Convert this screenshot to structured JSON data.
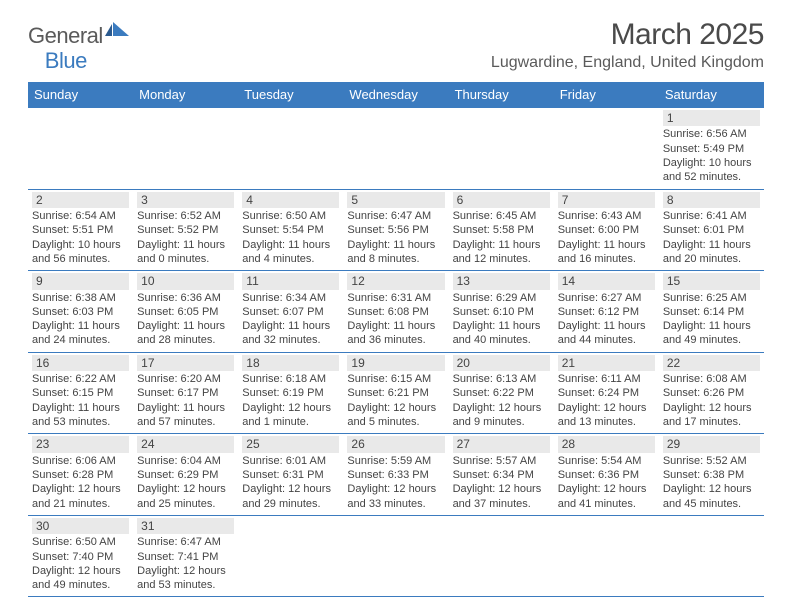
{
  "brand": {
    "part1": "General",
    "part2": "Blue"
  },
  "title": "March 2025",
  "location": "Lugwardine, England, United Kingdom",
  "colors": {
    "header_bg": "#3b7bbf",
    "header_text": "#ffffff",
    "daynum_bg": "#e9e9e9",
    "border": "#3b7bbf",
    "text": "#444444",
    "title_text": "#4a4a4a"
  },
  "weekdays": [
    "Sunday",
    "Monday",
    "Tuesday",
    "Wednesday",
    "Thursday",
    "Friday",
    "Saturday"
  ],
  "weeks": [
    [
      null,
      null,
      null,
      null,
      null,
      null,
      {
        "d": "1",
        "sr": "Sunrise: 6:56 AM",
        "ss": "Sunset: 5:49 PM",
        "dl1": "Daylight: 10 hours",
        "dl2": "and 52 minutes."
      }
    ],
    [
      {
        "d": "2",
        "sr": "Sunrise: 6:54 AM",
        "ss": "Sunset: 5:51 PM",
        "dl1": "Daylight: 10 hours",
        "dl2": "and 56 minutes."
      },
      {
        "d": "3",
        "sr": "Sunrise: 6:52 AM",
        "ss": "Sunset: 5:52 PM",
        "dl1": "Daylight: 11 hours",
        "dl2": "and 0 minutes."
      },
      {
        "d": "4",
        "sr": "Sunrise: 6:50 AM",
        "ss": "Sunset: 5:54 PM",
        "dl1": "Daylight: 11 hours",
        "dl2": "and 4 minutes."
      },
      {
        "d": "5",
        "sr": "Sunrise: 6:47 AM",
        "ss": "Sunset: 5:56 PM",
        "dl1": "Daylight: 11 hours",
        "dl2": "and 8 minutes."
      },
      {
        "d": "6",
        "sr": "Sunrise: 6:45 AM",
        "ss": "Sunset: 5:58 PM",
        "dl1": "Daylight: 11 hours",
        "dl2": "and 12 minutes."
      },
      {
        "d": "7",
        "sr": "Sunrise: 6:43 AM",
        "ss": "Sunset: 6:00 PM",
        "dl1": "Daylight: 11 hours",
        "dl2": "and 16 minutes."
      },
      {
        "d": "8",
        "sr": "Sunrise: 6:41 AM",
        "ss": "Sunset: 6:01 PM",
        "dl1": "Daylight: 11 hours",
        "dl2": "and 20 minutes."
      }
    ],
    [
      {
        "d": "9",
        "sr": "Sunrise: 6:38 AM",
        "ss": "Sunset: 6:03 PM",
        "dl1": "Daylight: 11 hours",
        "dl2": "and 24 minutes."
      },
      {
        "d": "10",
        "sr": "Sunrise: 6:36 AM",
        "ss": "Sunset: 6:05 PM",
        "dl1": "Daylight: 11 hours",
        "dl2": "and 28 minutes."
      },
      {
        "d": "11",
        "sr": "Sunrise: 6:34 AM",
        "ss": "Sunset: 6:07 PM",
        "dl1": "Daylight: 11 hours",
        "dl2": "and 32 minutes."
      },
      {
        "d": "12",
        "sr": "Sunrise: 6:31 AM",
        "ss": "Sunset: 6:08 PM",
        "dl1": "Daylight: 11 hours",
        "dl2": "and 36 minutes."
      },
      {
        "d": "13",
        "sr": "Sunrise: 6:29 AM",
        "ss": "Sunset: 6:10 PM",
        "dl1": "Daylight: 11 hours",
        "dl2": "and 40 minutes."
      },
      {
        "d": "14",
        "sr": "Sunrise: 6:27 AM",
        "ss": "Sunset: 6:12 PM",
        "dl1": "Daylight: 11 hours",
        "dl2": "and 44 minutes."
      },
      {
        "d": "15",
        "sr": "Sunrise: 6:25 AM",
        "ss": "Sunset: 6:14 PM",
        "dl1": "Daylight: 11 hours",
        "dl2": "and 49 minutes."
      }
    ],
    [
      {
        "d": "16",
        "sr": "Sunrise: 6:22 AM",
        "ss": "Sunset: 6:15 PM",
        "dl1": "Daylight: 11 hours",
        "dl2": "and 53 minutes."
      },
      {
        "d": "17",
        "sr": "Sunrise: 6:20 AM",
        "ss": "Sunset: 6:17 PM",
        "dl1": "Daylight: 11 hours",
        "dl2": "and 57 minutes."
      },
      {
        "d": "18",
        "sr": "Sunrise: 6:18 AM",
        "ss": "Sunset: 6:19 PM",
        "dl1": "Daylight: 12 hours",
        "dl2": "and 1 minute."
      },
      {
        "d": "19",
        "sr": "Sunrise: 6:15 AM",
        "ss": "Sunset: 6:21 PM",
        "dl1": "Daylight: 12 hours",
        "dl2": "and 5 minutes."
      },
      {
        "d": "20",
        "sr": "Sunrise: 6:13 AM",
        "ss": "Sunset: 6:22 PM",
        "dl1": "Daylight: 12 hours",
        "dl2": "and 9 minutes."
      },
      {
        "d": "21",
        "sr": "Sunrise: 6:11 AM",
        "ss": "Sunset: 6:24 PM",
        "dl1": "Daylight: 12 hours",
        "dl2": "and 13 minutes."
      },
      {
        "d": "22",
        "sr": "Sunrise: 6:08 AM",
        "ss": "Sunset: 6:26 PM",
        "dl1": "Daylight: 12 hours",
        "dl2": "and 17 minutes."
      }
    ],
    [
      {
        "d": "23",
        "sr": "Sunrise: 6:06 AM",
        "ss": "Sunset: 6:28 PM",
        "dl1": "Daylight: 12 hours",
        "dl2": "and 21 minutes."
      },
      {
        "d": "24",
        "sr": "Sunrise: 6:04 AM",
        "ss": "Sunset: 6:29 PM",
        "dl1": "Daylight: 12 hours",
        "dl2": "and 25 minutes."
      },
      {
        "d": "25",
        "sr": "Sunrise: 6:01 AM",
        "ss": "Sunset: 6:31 PM",
        "dl1": "Daylight: 12 hours",
        "dl2": "and 29 minutes."
      },
      {
        "d": "26",
        "sr": "Sunrise: 5:59 AM",
        "ss": "Sunset: 6:33 PM",
        "dl1": "Daylight: 12 hours",
        "dl2": "and 33 minutes."
      },
      {
        "d": "27",
        "sr": "Sunrise: 5:57 AM",
        "ss": "Sunset: 6:34 PM",
        "dl1": "Daylight: 12 hours",
        "dl2": "and 37 minutes."
      },
      {
        "d": "28",
        "sr": "Sunrise: 5:54 AM",
        "ss": "Sunset: 6:36 PM",
        "dl1": "Daylight: 12 hours",
        "dl2": "and 41 minutes."
      },
      {
        "d": "29",
        "sr": "Sunrise: 5:52 AM",
        "ss": "Sunset: 6:38 PM",
        "dl1": "Daylight: 12 hours",
        "dl2": "and 45 minutes."
      }
    ],
    [
      {
        "d": "30",
        "sr": "Sunrise: 6:50 AM",
        "ss": "Sunset: 7:40 PM",
        "dl1": "Daylight: 12 hours",
        "dl2": "and 49 minutes."
      },
      {
        "d": "31",
        "sr": "Sunrise: 6:47 AM",
        "ss": "Sunset: 7:41 PM",
        "dl1": "Daylight: 12 hours",
        "dl2": "and 53 minutes."
      },
      null,
      null,
      null,
      null,
      null
    ]
  ]
}
